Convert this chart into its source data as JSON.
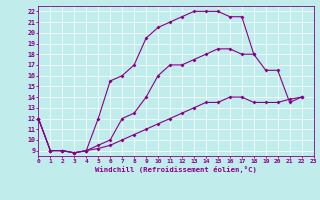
{
  "bg_color": "#c0ecec",
  "line_color": "#880088",
  "xlabel": "Windchill (Refroidissement éolien,°C)",
  "xlim": [
    0,
    23
  ],
  "ylim": [
    8.5,
    22.5
  ],
  "yticks": [
    9,
    10,
    11,
    12,
    13,
    14,
    15,
    16,
    17,
    18,
    19,
    20,
    21,
    22
  ],
  "xticks": [
    0,
    1,
    2,
    3,
    4,
    5,
    6,
    7,
    8,
    9,
    10,
    11,
    12,
    13,
    14,
    15,
    16,
    17,
    18,
    19,
    20,
    21,
    22,
    23
  ],
  "curve_top_x": [
    0,
    1,
    2,
    3,
    4,
    5,
    6,
    7,
    8,
    9,
    10,
    11,
    12,
    13,
    14,
    15,
    16,
    17,
    18
  ],
  "curve_top_y": [
    12,
    9,
    9,
    8.8,
    9,
    12,
    15.5,
    16,
    17,
    19.5,
    20.5,
    21,
    21.5,
    22,
    22,
    22,
    21.5,
    21.5,
    18
  ],
  "curve_mid_x": [
    0,
    1,
    2,
    3,
    4,
    5,
    6,
    7,
    8,
    9,
    10,
    11,
    12,
    13,
    14,
    15,
    16,
    17,
    18,
    19,
    20,
    21,
    22
  ],
  "curve_mid_y": [
    12,
    9,
    9,
    8.8,
    9,
    9.5,
    10,
    12,
    12.5,
    14,
    16,
    17,
    17,
    17.5,
    18,
    18.5,
    18.5,
    18,
    18,
    16.5,
    16.5,
    13.5,
    14
  ],
  "curve_bot_x": [
    0,
    1,
    2,
    3,
    4,
    5,
    6,
    7,
    8,
    9,
    10,
    11,
    12,
    13,
    14,
    15,
    16,
    17,
    18,
    19,
    20,
    21,
    22
  ],
  "curve_bot_y": [
    12,
    9,
    9,
    8.8,
    9,
    9.2,
    9.5,
    10,
    10.5,
    11,
    11.5,
    12,
    12.5,
    13,
    13.5,
    13.5,
    14,
    14,
    13.5,
    13.5,
    13.5,
    13.8,
    14
  ]
}
